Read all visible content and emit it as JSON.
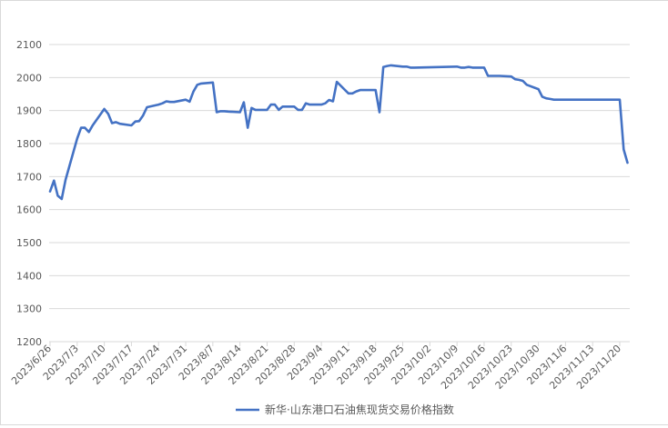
{
  "colors": {
    "series": "#4472C4",
    "grid": "#D9D9D9",
    "text": "#595959"
  },
  "chart_data": {
    "type": "line",
    "grid": true,
    "legend_position": "bottom",
    "ylim": [
      1200,
      2100
    ],
    "yticks": [
      1200,
      1300,
      1400,
      1500,
      1600,
      1700,
      1800,
      1900,
      2000,
      2100
    ],
    "xticks": [
      "2023/6/26",
      "2023/7/3",
      "2023/7/10",
      "2023/7/17",
      "2023/7/24",
      "2023/7/31",
      "2023/8/7",
      "2023/8/14",
      "2023/8/21",
      "2023/8/28",
      "2023/9/4",
      "2023/9/11",
      "2023/9/18",
      "2023/9/25",
      "2023/10/2",
      "2023/10/9",
      "2023/10/16",
      "2023/10/23",
      "2023/10/30",
      "2023/11/6",
      "2023/11/13",
      "2023/11/20"
    ],
    "series": [
      {
        "name": "新华·山东港口石油焦现货交易价格指数",
        "x": [
          "2023/6/26",
          "2023/6/27",
          "2023/6/28",
          "2023/6/29",
          "2023/6/30",
          "2023/7/3",
          "2023/7/4",
          "2023/7/5",
          "2023/7/6",
          "2023/7/7",
          "2023/7/10",
          "2023/7/11",
          "2023/7/12",
          "2023/7/13",
          "2023/7/14",
          "2023/7/17",
          "2023/7/18",
          "2023/7/19",
          "2023/7/20",
          "2023/7/21",
          "2023/7/24",
          "2023/7/25",
          "2023/7/26",
          "2023/7/27",
          "2023/7/28",
          "2023/7/31",
          "2023/8/1",
          "2023/8/2",
          "2023/8/3",
          "2023/8/4",
          "2023/8/7",
          "2023/8/8",
          "2023/8/9",
          "2023/8/10",
          "2023/8/11",
          "2023/8/14",
          "2023/8/15",
          "2023/8/16",
          "2023/8/17",
          "2023/8/18",
          "2023/8/21",
          "2023/8/22",
          "2023/8/23",
          "2023/8/24",
          "2023/8/25",
          "2023/8/28",
          "2023/8/29",
          "2023/8/30",
          "2023/8/31",
          "2023/9/1",
          "2023/9/4",
          "2023/9/5",
          "2023/9/6",
          "2023/9/7",
          "2023/9/8",
          "2023/9/11",
          "2023/9/12",
          "2023/9/13",
          "2023/9/14",
          "2023/9/15",
          "2023/9/18",
          "2023/9/19",
          "2023/9/20",
          "2023/9/21",
          "2023/9/22",
          "2023/9/25",
          "2023/9/26",
          "2023/9/27",
          "2023/9/28",
          "2023/10/9",
          "2023/10/10",
          "2023/10/11",
          "2023/10/12",
          "2023/10/13",
          "2023/10/16",
          "2023/10/17",
          "2023/10/18",
          "2023/10/19",
          "2023/10/20",
          "2023/10/23",
          "2023/10/24",
          "2023/10/25",
          "2023/10/26",
          "2023/10/27",
          "2023/10/30",
          "2023/10/31",
          "2023/11/1",
          "2023/11/2",
          "2023/11/3",
          "2023/11/6",
          "2023/11/7",
          "2023/11/8",
          "2023/11/9",
          "2023/11/10",
          "2023/11/13",
          "2023/11/14",
          "2023/11/15",
          "2023/11/16",
          "2023/11/17",
          "2023/11/20",
          "2023/11/21",
          "2023/11/22"
        ],
        "values": [
          1655,
          1688,
          1642,
          1632,
          1690,
          1815,
          1848,
          1848,
          1835,
          1855,
          1905,
          1890,
          1862,
          1865,
          1860,
          1855,
          1867,
          1868,
          1885,
          1910,
          1918,
          1922,
          1928,
          1926,
          1926,
          1933,
          1927,
          1958,
          1978,
          1982,
          1985,
          1895,
          1898,
          1898,
          1897,
          1895,
          1925,
          1848,
          1908,
          1902,
          1902,
          1918,
          1918,
          1902,
          1912,
          1912,
          1902,
          1902,
          1922,
          1918,
          1918,
          1922,
          1932,
          1928,
          1987,
          1952,
          1952,
          1958,
          1962,
          1962,
          1962,
          1895,
          2032,
          2035,
          2037,
          2033,
          2033,
          2030,
          2030,
          2033,
          2030,
          2030,
          2032,
          2030,
          2030,
          2005,
          2005,
          2005,
          2005,
          2003,
          1995,
          1993,
          1990,
          1978,
          1965,
          1942,
          1937,
          1935,
          1933,
          1933,
          1933,
          1933,
          1933,
          1933,
          1933,
          1933,
          1933,
          1933,
          1933,
          1933,
          1782,
          1742
        ]
      }
    ]
  }
}
